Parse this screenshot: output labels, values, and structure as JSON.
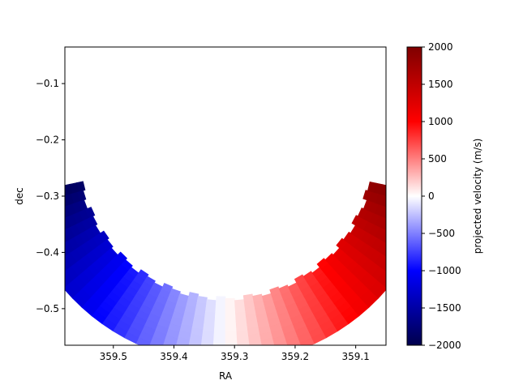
{
  "chart_data": {
    "type": "heatmap",
    "title": "",
    "xlabel": "RA",
    "ylabel": "dec",
    "xlim": [
      359.58,
      359.05
    ],
    "ylim": [
      -0.565,
      -0.035
    ],
    "x_ticks": [
      359.5,
      359.4,
      359.3,
      359.2,
      359.1
    ],
    "x_tick_labels": [
      "359.5",
      "359.4",
      "359.3",
      "359.2",
      "359.1"
    ],
    "y_ticks": [
      -0.1,
      -0.2,
      -0.3,
      -0.4,
      -0.5
    ],
    "y_tick_labels": [
      "−0.1",
      "−0.2",
      "−0.3",
      "−0.4",
      "−0.5"
    ],
    "grid": false,
    "colormap": "seismic",
    "colormap_stops": [
      "#00004c",
      "#0000ff",
      "#ffffff",
      "#ff0000",
      "#7f0000"
    ],
    "colorbar": {
      "label": "projected velocity (m/s)",
      "range": [
        -2000,
        2000
      ],
      "ticks": [
        2000,
        1500,
        1000,
        500,
        0,
        -500,
        -1000,
        -1500,
        -2000
      ],
      "tick_labels": [
        "2000",
        "1500",
        "1000",
        "500",
        "0",
        "−500",
        "−1000",
        "−1500",
        "−2000"
      ]
    },
    "region": {
      "description_of_shape": "crescent arc of colored cells",
      "circle_center": [
        359.315,
        -0.22
      ],
      "outer_radius": 0.35,
      "inner_radius": 0.24,
      "velocity_west_end": -2000,
      "velocity_east_end": 2000
    }
  }
}
